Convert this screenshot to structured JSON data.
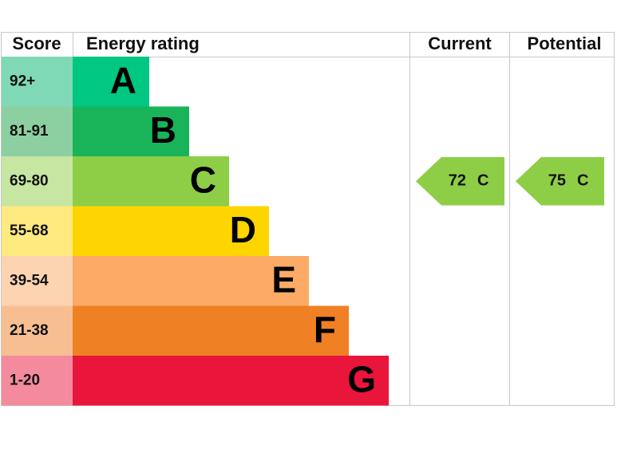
{
  "header": {
    "score": "Score",
    "rating": "Energy rating",
    "current": "Current",
    "potential": "Potential"
  },
  "bands": [
    {
      "score": "92+",
      "letter": "A",
      "color": "#00c781",
      "score_color": "#7fd9b6"
    },
    {
      "score": "81-91",
      "letter": "B",
      "color": "#19b459",
      "score_color": "#8cd0a2"
    },
    {
      "score": "69-80",
      "letter": "C",
      "color": "#8dce46",
      "score_color": "#c6e6a2"
    },
    {
      "score": "55-68",
      "letter": "D",
      "color": "#ffd500",
      "score_color": "#ffea80"
    },
    {
      "score": "39-54",
      "letter": "E",
      "color": "#fcaa65",
      "score_color": "#fdd4b2"
    },
    {
      "score": "21-38",
      "letter": "F",
      "color": "#ef8023",
      "score_color": "#f7bf91"
    },
    {
      "score": "1-20",
      "letter": "G",
      "color": "#e9153b",
      "score_color": "#f48a9d"
    }
  ],
  "current": {
    "score": 72,
    "band": "C"
  },
  "potential": {
    "score": 75,
    "band": "C"
  }
}
